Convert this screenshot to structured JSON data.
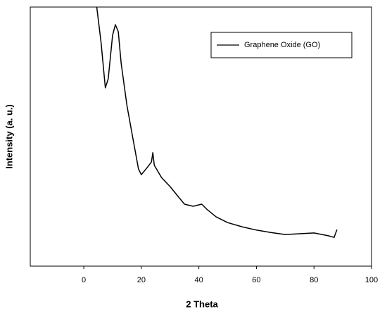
{
  "chart_data": {
    "type": "line",
    "x_label": "2 Theta",
    "y_label": "Intensity (a. u.)",
    "xlim": [
      -18.6,
      100
    ],
    "ylim": [
      0,
      100
    ],
    "xticks": [
      0,
      20,
      40,
      60,
      80,
      100
    ],
    "legend": "upper right",
    "x": [
      4.5,
      6,
      7.5,
      8.5,
      10,
      11,
      12,
      13,
      15,
      17,
      19,
      20,
      22,
      23.5,
      24,
      24.5,
      27,
      30,
      33,
      35,
      38,
      41,
      43,
      46,
      50,
      55,
      60,
      65,
      70,
      75,
      80,
      85,
      87,
      88
    ],
    "series": [
      {
        "name": "Graphene Oxide (GO)",
        "color": "#000000",
        "values": [
          100,
          86.4,
          68.8,
          72.3,
          89.1,
          93.2,
          90.5,
          78.3,
          62,
          49.7,
          37.5,
          35.3,
          38,
          40.2,
          43.8,
          38.9,
          34.2,
          30.7,
          26.6,
          23.9,
          23.1,
          23.9,
          21.7,
          19,
          16.8,
          15.2,
          13.9,
          13,
          12.2,
          12.5,
          12.8,
          11.7,
          11.1,
          14.1
        ]
      }
    ]
  }
}
